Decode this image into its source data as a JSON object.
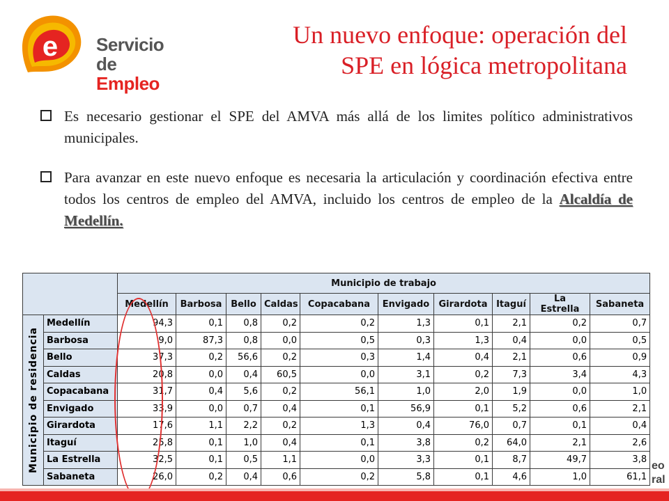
{
  "logo": {
    "line1": "Servicio",
    "line2_a": "de ",
    "line2_b": "Empleo",
    "letter": "e"
  },
  "title": {
    "line1": "Un nuevo enfoque: operación del",
    "line2": "SPE en lógica metropolitana"
  },
  "bullets": [
    {
      "text": "Es necesario gestionar el SPE del AMVA más allá de los limites político administrativos municipales."
    },
    {
      "text_before": "Para avanzar en este nuevo enfoque es necesaria la articulación y coordinación efectiva entre todos los centros de empleo del AMVA, incluido los centros de empleo de la ",
      "emphasis": "Alcaldía de Medellín."
    }
  ],
  "table": {
    "header_main": "Municipio de trabajo",
    "row_header": "Municipio de residencia",
    "columns": [
      "Medellín",
      "Barbosa",
      "Bello",
      "Caldas",
      "Copacabana",
      "Envigado",
      "Girardota",
      "Itaguí",
      "La Estrella",
      "Sabaneta"
    ],
    "rows": [
      {
        "label": "Medellín",
        "values": [
          "94,3",
          "0,1",
          "0,8",
          "0,2",
          "0,2",
          "1,3",
          "0,1",
          "2,1",
          "0,2",
          "0,7"
        ]
      },
      {
        "label": "Barbosa",
        "values": [
          "9,0",
          "87,3",
          "0,8",
          "0,0",
          "0,5",
          "0,3",
          "1,3",
          "0,4",
          "0,0",
          "0,5"
        ]
      },
      {
        "label": "Bello",
        "values": [
          "37,3",
          "0,2",
          "56,6",
          "0,2",
          "0,3",
          "1,4",
          "0,4",
          "2,1",
          "0,6",
          "0,9"
        ]
      },
      {
        "label": "Caldas",
        "values": [
          "20,8",
          "0,0",
          "0,4",
          "60,5",
          "0,0",
          "3,1",
          "0,2",
          "7,3",
          "3,4",
          "4,3"
        ]
      },
      {
        "label": "Copacabana",
        "values": [
          "31,7",
          "0,4",
          "5,6",
          "0,2",
          "56,1",
          "1,0",
          "2,0",
          "1,9",
          "0,0",
          "1,0"
        ]
      },
      {
        "label": "Envigado",
        "values": [
          "33,9",
          "0,0",
          "0,7",
          "0,4",
          "0,1",
          "56,9",
          "0,1",
          "5,2",
          "0,6",
          "2,1"
        ]
      },
      {
        "label": "Girardota",
        "values": [
          "17,6",
          "1,1",
          "2,2",
          "0,2",
          "1,3",
          "0,4",
          "76,0",
          "0,7",
          "0,1",
          "0,4"
        ]
      },
      {
        "label": "Itaguí",
        "values": [
          "25,8",
          "0,1",
          "1,0",
          "0,4",
          "0,1",
          "3,8",
          "0,2",
          "64,0",
          "2,1",
          "2,6"
        ]
      },
      {
        "label": "La Estrella",
        "values": [
          "32,5",
          "0,1",
          "0,5",
          "1,1",
          "0,0",
          "3,3",
          "0,1",
          "8,7",
          "49,7",
          "3,8"
        ]
      },
      {
        "label": "Sabaneta",
        "values": [
          "26,0",
          "0,2",
          "0,4",
          "0,6",
          "0,2",
          "5,8",
          "0,1",
          "4,6",
          "1,0",
          "61,1"
        ]
      }
    ]
  },
  "corner_fragment": {
    "line1": "eo",
    "line2": "ral"
  },
  "colors": {
    "accent_red": "#d91f26",
    "header_fill": "#dbe5f1",
    "logo_orange": "#f39200"
  }
}
